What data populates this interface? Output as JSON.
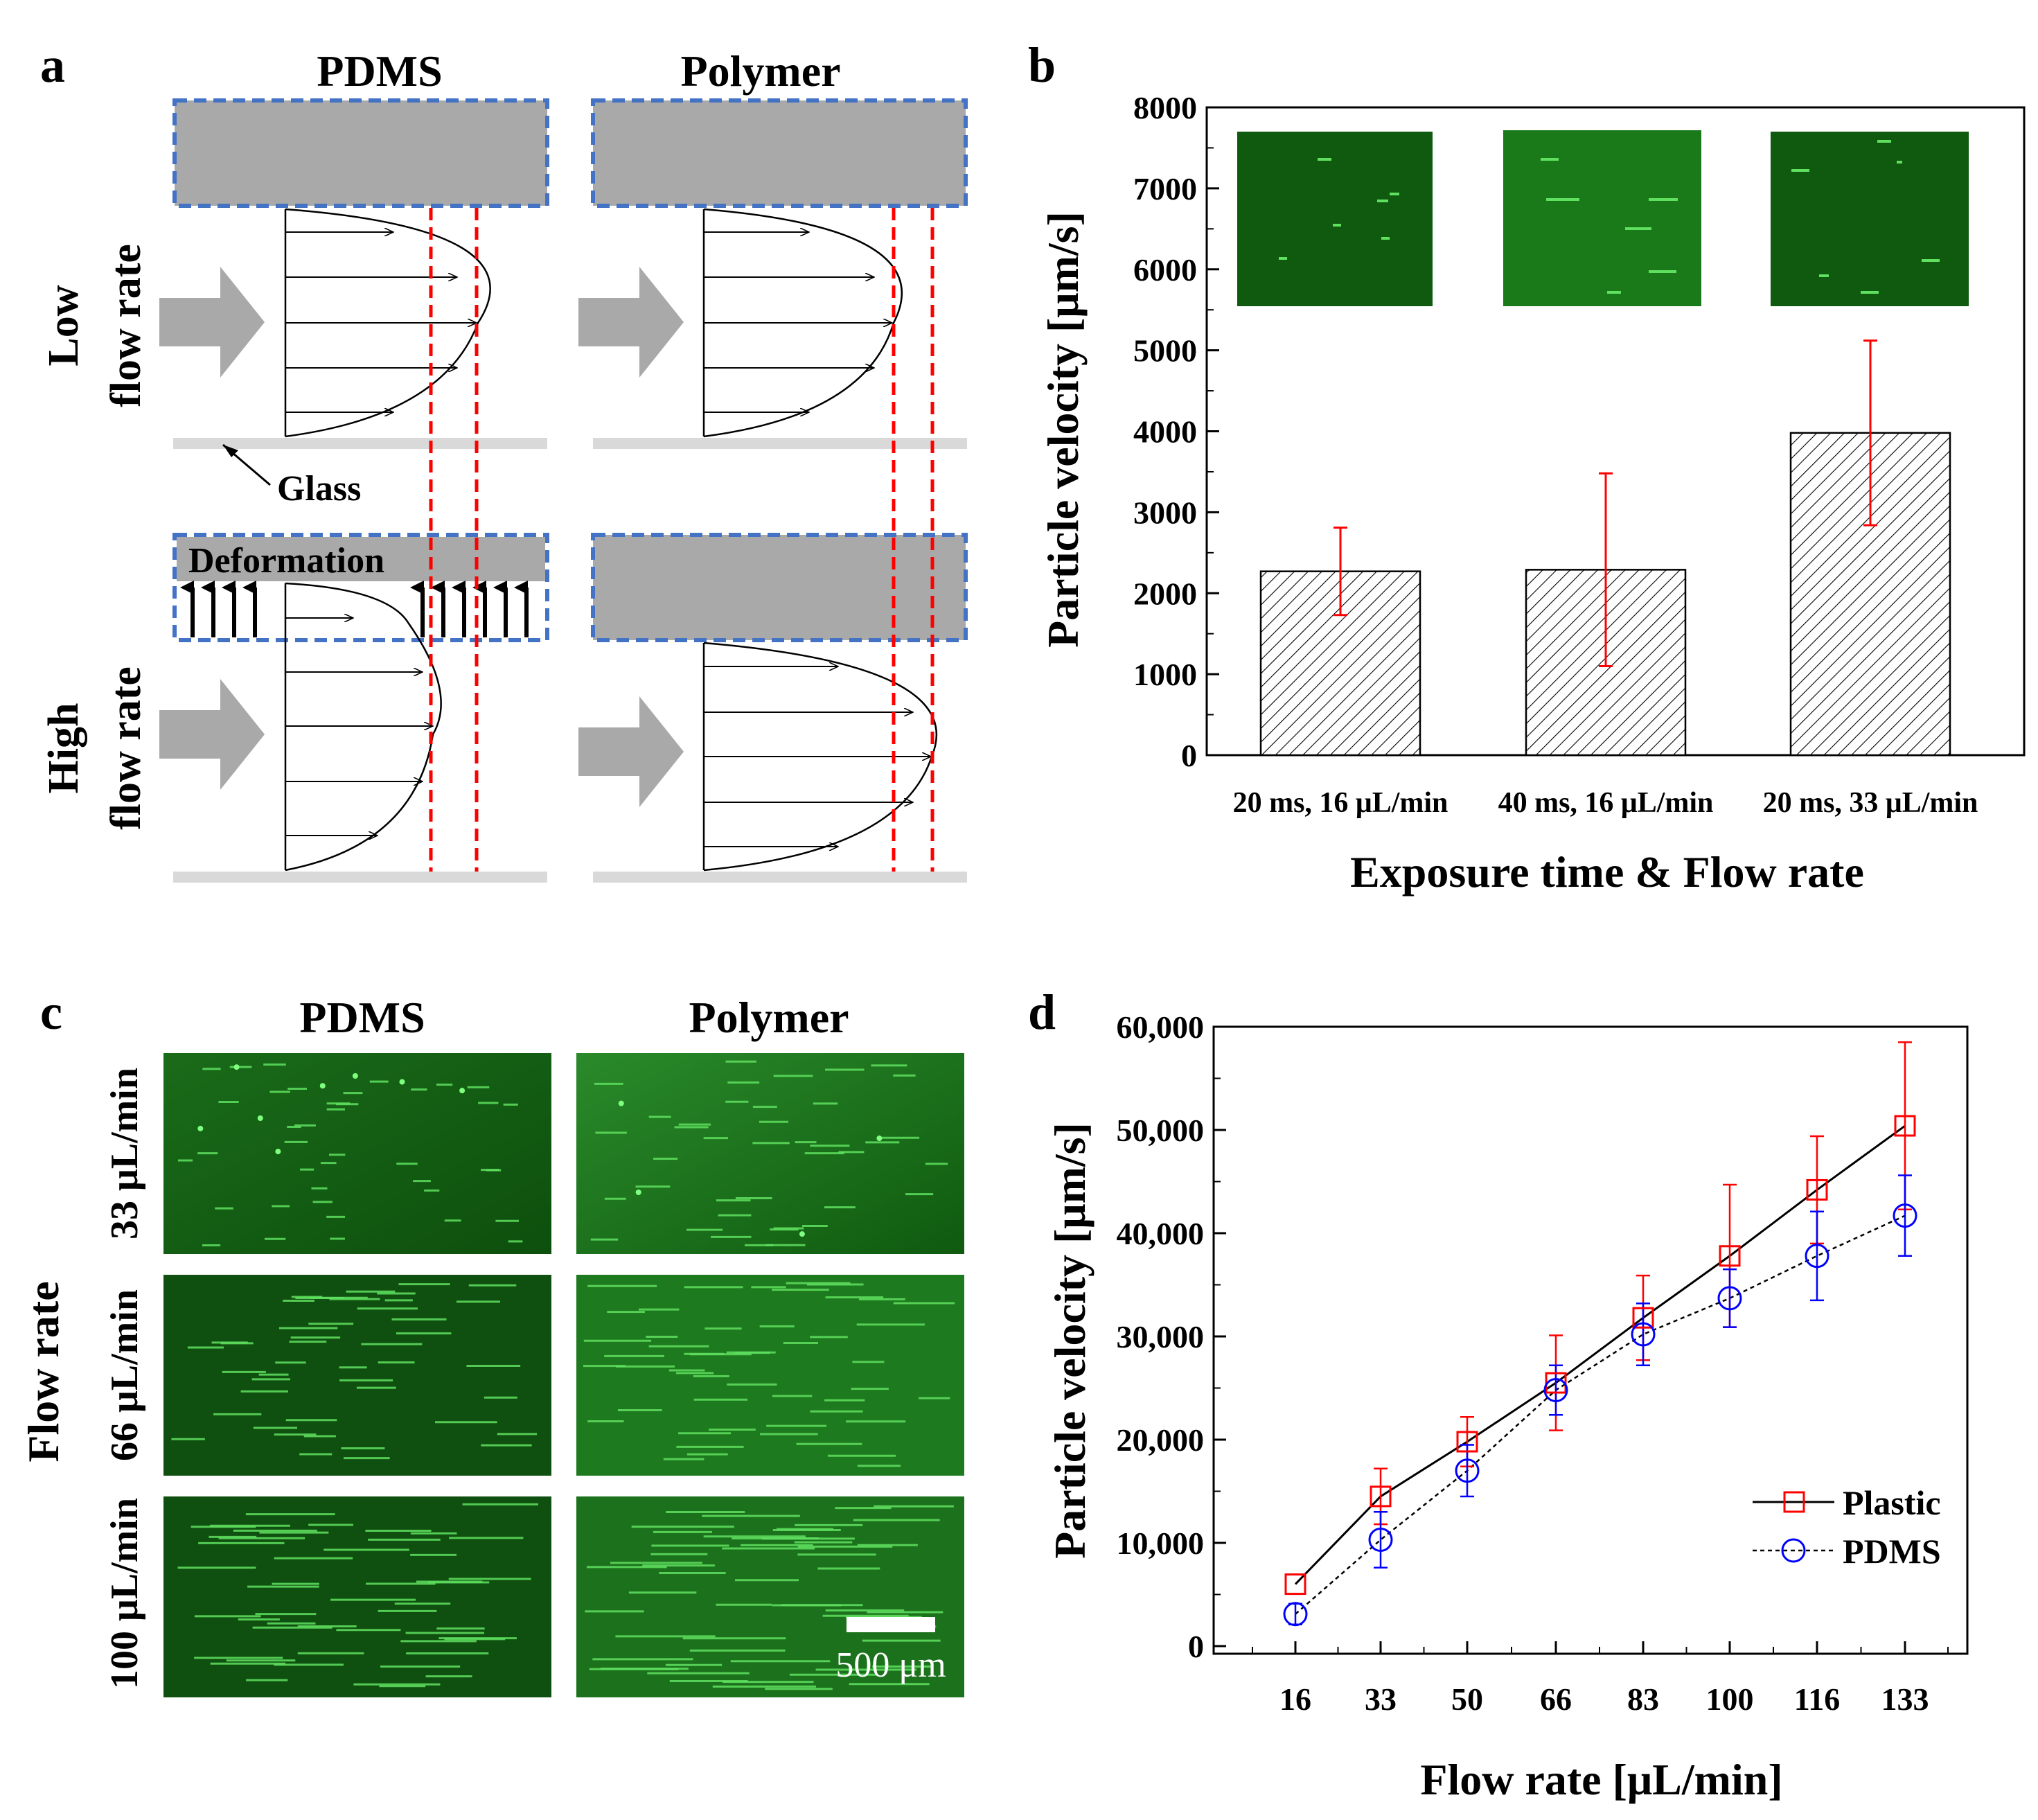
{
  "panel_a": {
    "letter": "a",
    "col_pdms": "PDMS",
    "col_polymer": "Polymer",
    "row_low_1": "Low",
    "row_low_2": "flow rate",
    "row_high_1": "High",
    "row_high_2": "flow rate",
    "glass_label": "Glass",
    "deformation_label": "Deformation"
  },
  "panel_c": {
    "letter": "c",
    "col_pdms": "PDMS",
    "col_polymer": "Polymer",
    "row_labels": [
      "33 μL/min",
      "66 μL/min",
      "100 μL/min"
    ],
    "side_label": "Flow rate",
    "scale_bar": "500 μm"
  },
  "colors": {
    "chamber_gray": "#a9a9a9",
    "dash_blue": "#4472c4",
    "red": "#ff0000",
    "blue": "#0000ff",
    "green_dark": "#0b4a0b",
    "green_mid": "#1e7a1e",
    "streak": "#5fe05f"
  },
  "chart_data": [
    {
      "panel": "b",
      "type": "bar",
      "categories": [
        "20 ms, 16 μL/min",
        "40 ms, 16 μL/min",
        "20 ms, 33 μL/min"
      ],
      "values": [
        2270,
        2290,
        3980
      ],
      "errors": [
        540,
        1190,
        1140
      ],
      "ylabel": "Particle velocity [μm/s]",
      "xlabel": "Exposure time & Flow rate",
      "ylim": [
        0,
        8000
      ],
      "yticks": [
        "0",
        "1000",
        "2000",
        "3000",
        "4000",
        "5000",
        "6000",
        "7000",
        "8000"
      ]
    },
    {
      "panel": "d",
      "type": "line",
      "x": [
        "16",
        "33",
        "50",
        "66",
        "83",
        "100",
        "116",
        "133"
      ],
      "ylabel": "Particle velocity [μm/s]",
      "xlabel": "Flow rate [μL/min]",
      "ylim": [
        0,
        60000
      ],
      "yticks": [
        "0",
        "10,000",
        "20,000",
        "30,000",
        "40,000",
        "50,000",
        "60,000"
      ],
      "series": [
        {
          "name": "Plastic",
          "values": [
            6000,
            14500,
            19800,
            25500,
            31800,
            37800,
            44200,
            50400
          ],
          "errors": [
            0,
            2700,
            2400,
            4600,
            4100,
            6900,
            5200,
            8100
          ]
        },
        {
          "name": "PDMS",
          "values": [
            3100,
            10300,
            17000,
            24800,
            30200,
            33700,
            37800,
            41700
          ],
          "errors": [
            1000,
            2700,
            2500,
            2400,
            3000,
            2800,
            4300,
            3900
          ]
        }
      ]
    }
  ]
}
